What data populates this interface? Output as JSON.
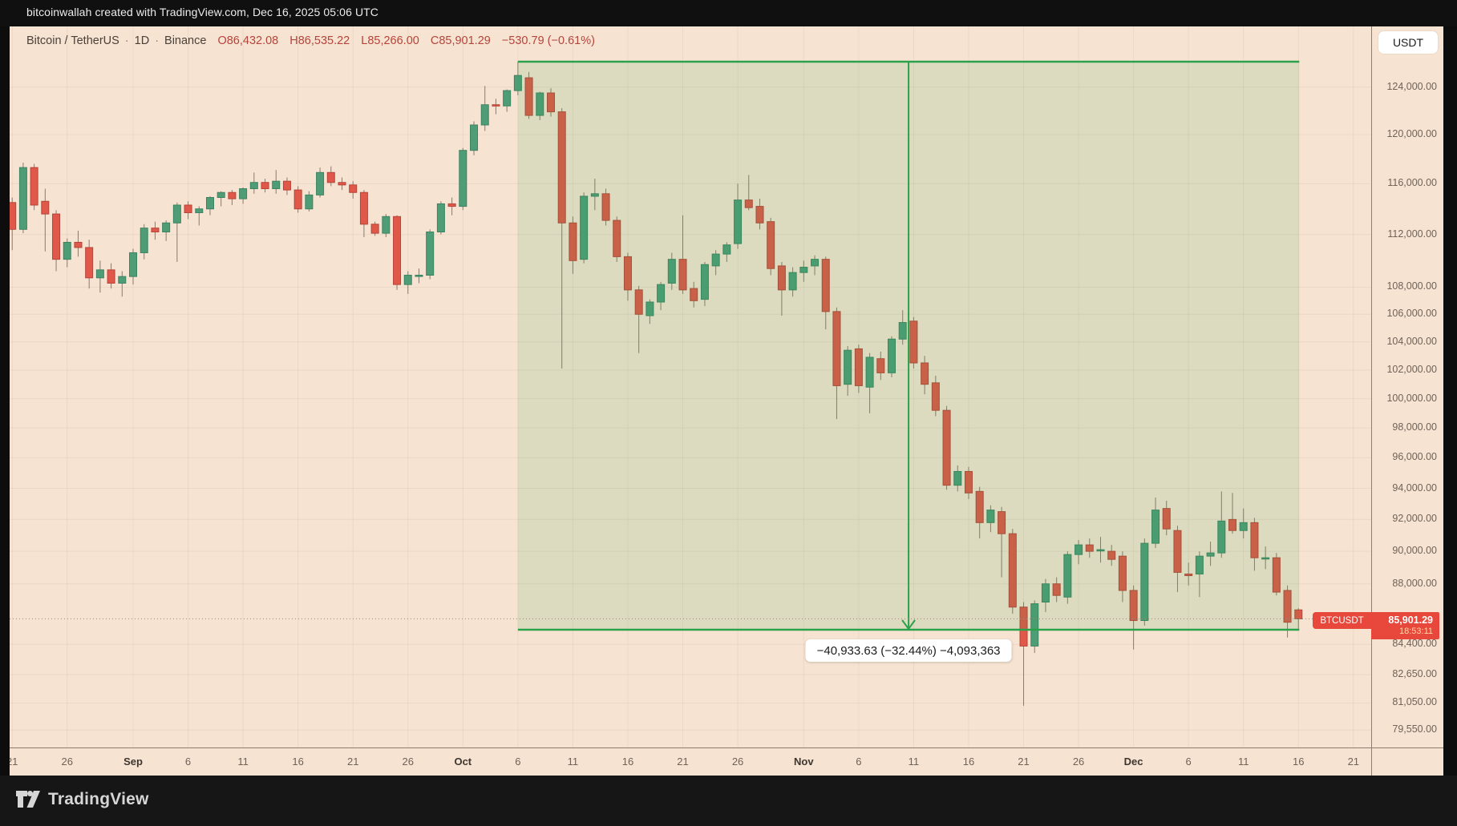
{
  "header": {
    "attribution": "bitcoinwallah created with TradingView.com, Dec 16, 2025 05:06 UTC",
    "symbol": "Bitcoin / TetherUS",
    "separator": "·",
    "interval": "1D",
    "exchange": "Binance",
    "ohlc": [
      {
        "k": "O",
        "v": "86,432.08"
      },
      {
        "k": "H",
        "v": "86,535.22"
      },
      {
        "k": "L",
        "v": "85,266.00"
      },
      {
        "k": "C",
        "v": "85,901.29"
      }
    ],
    "change": "−530.79 (−0.61%)"
  },
  "price_scale": {
    "currency_button": "USDT",
    "labels": [
      {
        "text": "124,000.00",
        "value": 124000
      },
      {
        "text": "120,000.00",
        "value": 120000
      },
      {
        "text": "116,000.00",
        "value": 116000
      },
      {
        "text": "112,000.00",
        "value": 112000
      },
      {
        "text": "108,000.00",
        "value": 108000
      },
      {
        "text": "106,000.00",
        "value": 106000
      },
      {
        "text": "104,000.00",
        "value": 104000
      },
      {
        "text": "102,000.00",
        "value": 102000
      },
      {
        "text": "100,000.00",
        "value": 100000
      },
      {
        "text": "98,000.00",
        "value": 98000
      },
      {
        "text": "96,000.00",
        "value": 96000
      },
      {
        "text": "94,000.00",
        "value": 94000
      },
      {
        "text": "92,000.00",
        "value": 92000
      },
      {
        "text": "90,000.00",
        "value": 90000
      },
      {
        "text": "88,000.00",
        "value": 88000
      },
      {
        "text": "84,400.00",
        "value": 84400
      },
      {
        "text": "82,650.00",
        "value": 82650
      },
      {
        "text": "81,050.00",
        "value": 81050
      },
      {
        "text": "79,550.00",
        "value": 79550
      }
    ]
  },
  "time_scale": {
    "labels": [
      {
        "text": "21",
        "i": 0,
        "bold": false
      },
      {
        "text": "26",
        "i": 5,
        "bold": false
      },
      {
        "text": "Sep",
        "i": 11,
        "bold": true
      },
      {
        "text": "6",
        "i": 16,
        "bold": false
      },
      {
        "text": "11",
        "i": 21,
        "bold": false
      },
      {
        "text": "16",
        "i": 26,
        "bold": false
      },
      {
        "text": "21",
        "i": 31,
        "bold": false
      },
      {
        "text": "26",
        "i": 36,
        "bold": false
      },
      {
        "text": "Oct",
        "i": 41,
        "bold": true
      },
      {
        "text": "6",
        "i": 46,
        "bold": false
      },
      {
        "text": "11",
        "i": 51,
        "bold": false
      },
      {
        "text": "16",
        "i": 56,
        "bold": false
      },
      {
        "text": "21",
        "i": 61,
        "bold": false
      },
      {
        "text": "26",
        "i": 66,
        "bold": false
      },
      {
        "text": "Nov",
        "i": 72,
        "bold": true
      },
      {
        "text": "6",
        "i": 77,
        "bold": false
      },
      {
        "text": "11",
        "i": 82,
        "bold": false
      },
      {
        "text": "16",
        "i": 87,
        "bold": false
      },
      {
        "text": "21",
        "i": 92,
        "bold": false
      },
      {
        "text": "26",
        "i": 97,
        "bold": false
      },
      {
        "text": "Dec",
        "i": 102,
        "bold": true
      },
      {
        "text": "6",
        "i": 107,
        "bold": false
      },
      {
        "text": "11",
        "i": 112,
        "bold": false
      },
      {
        "text": "16",
        "i": 117,
        "bold": false
      },
      {
        "text": "21",
        "i": 122,
        "bold": false
      }
    ]
  },
  "measurement": {
    "label": "−40,933.63 (−32.44%) −4,093,363",
    "from_index": 46,
    "to_index": 117,
    "top_price": 126192,
    "bottom_price": 85258
  },
  "price_tag": {
    "symbol": "BTCUSDT",
    "price": "85,901.29",
    "countdown": "18:53:11",
    "price_value": 85901.29
  },
  "footer": {
    "brand": "TradingView"
  },
  "colors": {
    "up": "#4f9d77",
    "up_border": "#3d8361",
    "down": "#e0584a",
    "down_border": "#b64437",
    "wick": "#8a7b6d",
    "measure_green": "#2aa24a",
    "measure_fill": "rgba(46,160,68,0.13)",
    "tag_red": "#e8473b",
    "grid": "rgba(122,92,70,0.08)",
    "price_line": "#9b8b7c"
  },
  "chart_data": {
    "type": "candlestick",
    "title": "Bitcoin / TetherUS 1D Binance",
    "y_scale": "log",
    "y_range_top": 126500,
    "y_range_bottom": 78600,
    "candles": [
      [
        "Aug 21",
        114500,
        114900,
        110800,
        112400
      ],
      [
        "Aug 22",
        112400,
        117700,
        112100,
        117300
      ],
      [
        "Aug 23",
        117300,
        117600,
        113900,
        114300
      ],
      [
        "Aug 24",
        114600,
        115600,
        110700,
        113600
      ],
      [
        "Aug 25",
        113600,
        113900,
        109200,
        110100
      ],
      [
        "Aug 26",
        110100,
        111700,
        109500,
        111400
      ],
      [
        "Aug 27",
        111400,
        112300,
        110300,
        111000
      ],
      [
        "Aug 28",
        111000,
        111600,
        107900,
        108700
      ],
      [
        "Aug 29",
        108700,
        110000,
        107600,
        109300
      ],
      [
        "Aug 30",
        109300,
        109800,
        107900,
        108300
      ],
      [
        "Aug 31",
        108300,
        109200,
        107300,
        108800
      ],
      [
        "Sep 1",
        108800,
        110900,
        108200,
        110600
      ],
      [
        "Sep 2",
        110600,
        112800,
        110100,
        112500
      ],
      [
        "Sep 3",
        112500,
        113000,
        111600,
        112200
      ],
      [
        "Sep 4",
        112200,
        113100,
        111500,
        112900
      ],
      [
        "Sep 5",
        112900,
        114500,
        109900,
        114300
      ],
      [
        "Sep 6",
        114300,
        114600,
        113200,
        113700
      ],
      [
        "Sep 7",
        113700,
        114200,
        112700,
        114000
      ],
      [
        "Sep 8",
        114000,
        115000,
        113500,
        114900
      ],
      [
        "Sep 9",
        114900,
        115400,
        114200,
        115300
      ],
      [
        "Sep 10",
        115300,
        115500,
        114300,
        114800
      ],
      [
        "Sep 11",
        114800,
        115700,
        114400,
        115600
      ],
      [
        "Sep 12",
        115600,
        116900,
        115200,
        116100
      ],
      [
        "Sep 13",
        116100,
        116400,
        115300,
        115600
      ],
      [
        "Sep 14",
        115600,
        117100,
        115200,
        116200
      ],
      [
        "Sep 15",
        116200,
        116500,
        115100,
        115500
      ],
      [
        "Sep 16",
        115500,
        115800,
        113700,
        114000
      ],
      [
        "Sep 17",
        114000,
        115400,
        113800,
        115100
      ],
      [
        "Sep 18",
        115100,
        117300,
        114900,
        116900
      ],
      [
        "Sep 19",
        116900,
        117400,
        115800,
        116100
      ],
      [
        "Sep 20",
        116100,
        116500,
        115500,
        115900
      ],
      [
        "Sep 21",
        115900,
        116200,
        114800,
        115300
      ],
      [
        "Sep 22",
        115300,
        115500,
        111800,
        112800
      ],
      [
        "Sep 23",
        112800,
        113000,
        111900,
        112100
      ],
      [
        "Sep 24",
        112100,
        113600,
        111800,
        113400
      ],
      [
        "Sep 25",
        113400,
        113500,
        107800,
        108200
      ],
      [
        "Sep 26",
        108200,
        109200,
        107500,
        108900
      ],
      [
        "Sep 27",
        108900,
        109400,
        108300,
        108900
      ],
      [
        "Sep 28",
        108900,
        112400,
        108600,
        112200
      ],
      [
        "Sep 29",
        112200,
        114600,
        112000,
        114400
      ],
      [
        "Sep 30",
        114400,
        114900,
        113500,
        114200
      ],
      [
        "Oct 1",
        114200,
        118900,
        113900,
        118700
      ],
      [
        "Oct 2",
        118700,
        121100,
        118300,
        120800
      ],
      [
        "Oct 3",
        120800,
        124100,
        120300,
        122500
      ],
      [
        "Oct 4",
        122500,
        123000,
        121700,
        122400
      ],
      [
        "Oct 5",
        122400,
        123800,
        121900,
        123700
      ],
      [
        "Oct 6",
        123700,
        126200,
        123300,
        125000
      ],
      [
        "Oct 7",
        124800,
        125300,
        121300,
        121600
      ],
      [
        "Oct 8",
        121600,
        123600,
        121200,
        123500
      ],
      [
        "Oct 9",
        123500,
        123900,
        121500,
        121900
      ],
      [
        "Oct 10",
        121900,
        122200,
        102100,
        112900
      ],
      [
        "Oct 11",
        112900,
        113400,
        109000,
        110000
      ],
      [
        "Oct 12",
        110100,
        115300,
        109800,
        115000
      ],
      [
        "Oct 13",
        115000,
        116400,
        113900,
        115200
      ],
      [
        "Oct 14",
        115200,
        115600,
        112700,
        113100
      ],
      [
        "Oct 15",
        113100,
        113400,
        109900,
        110300
      ],
      [
        "Oct 16",
        110300,
        110600,
        107000,
        107800
      ],
      [
        "Oct 17",
        107800,
        108100,
        103200,
        106000
      ],
      [
        "Oct 18",
        105900,
        107100,
        105300,
        106900
      ],
      [
        "Oct 19",
        106900,
        108400,
        106300,
        108200
      ],
      [
        "Oct 20",
        108300,
        110600,
        107800,
        110100
      ],
      [
        "Oct 21",
        110100,
        113500,
        107500,
        107800
      ],
      [
        "Oct 22",
        107900,
        108400,
        106500,
        107000
      ],
      [
        "Oct 23",
        107100,
        109900,
        106600,
        109700
      ],
      [
        "Oct 24",
        109600,
        110800,
        108900,
        110500
      ],
      [
        "Oct 25",
        110500,
        111400,
        109900,
        111200
      ],
      [
        "Oct 26",
        111300,
        116000,
        110900,
        114700
      ],
      [
        "Oct 27",
        114700,
        116700,
        113900,
        114100
      ],
      [
        "Oct 28",
        114200,
        114800,
        112400,
        112900
      ],
      [
        "Oct 29",
        113000,
        113300,
        108900,
        109400
      ],
      [
        "Oct 30",
        109600,
        109900,
        105900,
        107800
      ],
      [
        "Oct 31",
        107800,
        109500,
        107300,
        109100
      ],
      [
        "Nov 1",
        109100,
        110000,
        108400,
        109500
      ],
      [
        "Nov 2",
        109600,
        110400,
        108900,
        110100
      ],
      [
        "Nov 3",
        110100,
        110300,
        104900,
        106200
      ],
      [
        "Nov 4",
        106200,
        106500,
        98600,
        100900
      ],
      [
        "Nov 5",
        101000,
        103700,
        100200,
        103400
      ],
      [
        "Nov 6",
        103500,
        103800,
        100400,
        100900
      ],
      [
        "Nov 7",
        100800,
        103200,
        99000,
        102900
      ],
      [
        "Nov 8",
        102800,
        103300,
        101300,
        101800
      ],
      [
        "Nov 9",
        101800,
        104400,
        101500,
        104200
      ],
      [
        "Nov 10",
        104200,
        106300,
        103800,
        105400
      ],
      [
        "Nov 11",
        105500,
        105800,
        102100,
        102500
      ],
      [
        "Nov 12",
        102500,
        103000,
        100300,
        101000
      ],
      [
        "Nov 13",
        101100,
        101600,
        98800,
        99200
      ],
      [
        "Nov 14",
        99200,
        99500,
        93900,
        94200
      ],
      [
        "Nov 15",
        94200,
        95500,
        93800,
        95100
      ],
      [
        "Nov 16",
        95100,
        95400,
        93300,
        93700
      ],
      [
        "Nov 17",
        93800,
        94100,
        90800,
        91800
      ],
      [
        "Nov 18",
        91800,
        92900,
        91200,
        92600
      ],
      [
        "Nov 19",
        92500,
        92800,
        88400,
        91100
      ],
      [
        "Nov 20",
        91100,
        91400,
        86200,
        86600
      ],
      [
        "Nov 21",
        86600,
        86900,
        80900,
        84300
      ],
      [
        "Nov 22",
        84300,
        87000,
        83900,
        86800
      ],
      [
        "Nov 23",
        86900,
        88300,
        86300,
        88000
      ],
      [
        "Nov 24",
        88000,
        88400,
        86900,
        87300
      ],
      [
        "Nov 25",
        87200,
        90000,
        86800,
        89800
      ],
      [
        "Nov 26",
        89800,
        90700,
        89200,
        90400
      ],
      [
        "Nov 27",
        90400,
        90800,
        89600,
        90000
      ],
      [
        "Nov 28",
        90100,
        90900,
        89300,
        90100
      ],
      [
        "Nov 29",
        90000,
        90400,
        89100,
        89500
      ],
      [
        "Nov 30",
        89700,
        90000,
        86900,
        87600
      ],
      [
        "Dec 1",
        87600,
        87900,
        84100,
        85800
      ],
      [
        "Dec 2",
        85800,
        90800,
        85500,
        90500
      ],
      [
        "Dec 3",
        90500,
        93400,
        90200,
        92600
      ],
      [
        "Dec 4",
        92700,
        93200,
        91000,
        91400
      ],
      [
        "Dec 5",
        91300,
        91600,
        87500,
        88700
      ],
      [
        "Dec 6",
        88600,
        89300,
        87900,
        88500
      ],
      [
        "Dec 7",
        88600,
        90000,
        87200,
        89700
      ],
      [
        "Dec 8",
        89700,
        90600,
        89100,
        89900
      ],
      [
        "Dec 9",
        89900,
        93800,
        89600,
        91900
      ],
      [
        "Dec 10",
        92000,
        93700,
        91100,
        91300
      ],
      [
        "Dec 11",
        91300,
        92700,
        90800,
        91800
      ],
      [
        "Dec 12",
        91800,
        92100,
        88800,
        89600
      ],
      [
        "Dec 13",
        89600,
        90300,
        88900,
        89600
      ],
      [
        "Dec 14",
        89600,
        89900,
        87300,
        87500
      ],
      [
        "Dec 15",
        87600,
        87900,
        84800,
        85700
      ],
      [
        "Dec 16",
        86432,
        86535,
        85266,
        85901.29
      ]
    ]
  }
}
